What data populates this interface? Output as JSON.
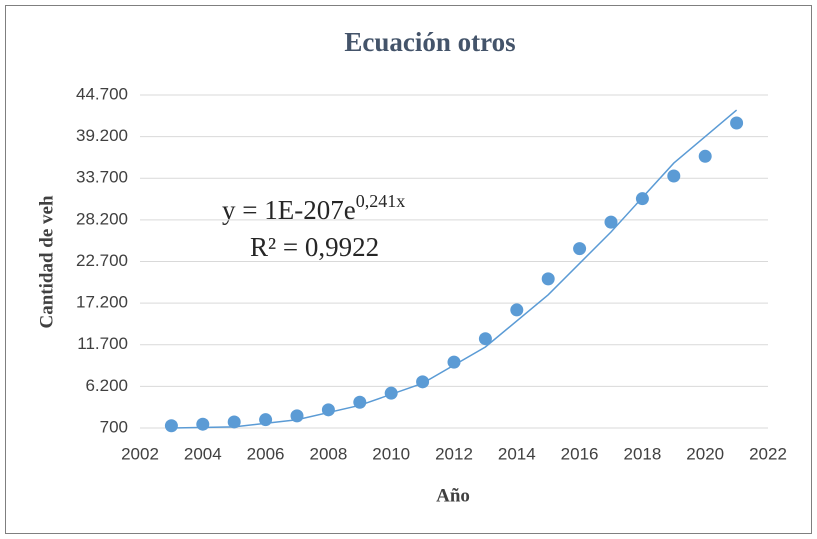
{
  "chart_data": {
    "type": "scatter",
    "title": "Ecuación otros",
    "x_label": "Año",
    "y_label": "Cantidad de veh",
    "x": [
      2003,
      2004,
      2005,
      2006,
      2007,
      2008,
      2009,
      2010,
      2011,
      2012,
      2013,
      2014,
      2015,
      2016,
      2017,
      2018,
      2019,
      2020,
      2021
    ],
    "values": [
      1000,
      1200,
      1500,
      1800,
      2300,
      3100,
      4100,
      5300,
      6800,
      9400,
      12500,
      16300,
      20400,
      24400,
      27900,
      31000,
      34000,
      36600,
      41000
    ],
    "color": "#5b9bd5",
    "trendline": {
      "x": [
        2003,
        2005,
        2007,
        2009,
        2011,
        2013,
        2015,
        2017,
        2019,
        2021
      ],
      "values": [
        700,
        850,
        1800,
        3700,
        6600,
        11400,
        18300,
        26600,
        35700,
        42700
      ],
      "color": "#5b9bd5"
    },
    "equation": "y = 1E-207e",
    "equation_exponent": "0,241x",
    "r_squared": "R² = 0,9922",
    "xlim": [
      2002,
      2022
    ],
    "xticks": [
      2002,
      2004,
      2006,
      2008,
      2010,
      2012,
      2014,
      2016,
      2018,
      2020,
      2022
    ],
    "ylim": [
      700,
      44700
    ],
    "yticks": [
      700,
      {
        "value": 6200,
        "label": "6.200"
      },
      {
        "value": 11700,
        "label": "11.700"
      },
      {
        "value": 17200,
        "label": "17.200"
      },
      {
        "value": 22700,
        "label": "22.700"
      },
      {
        "value": 28200,
        "label": "28.200"
      },
      {
        "value": 33700,
        "label": "33.700"
      },
      {
        "value": 39200,
        "label": "39.200"
      },
      {
        "value": 44700,
        "label": "44.700"
      }
    ],
    "grid": true
  }
}
